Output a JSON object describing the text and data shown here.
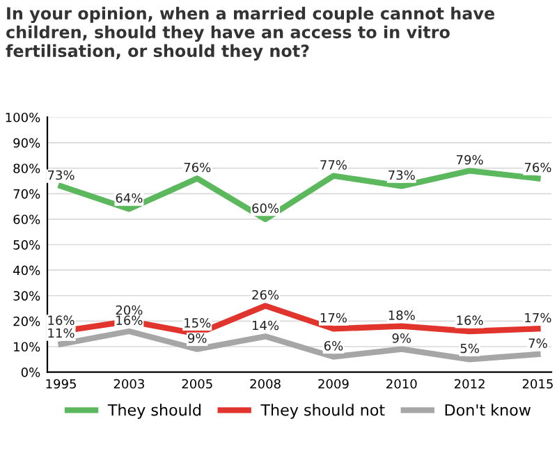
{
  "chart_data": {
    "type": "line",
    "title": "In your opinion, when a married couple cannot have children, should they have an access to in vitro fertilisation, or should they not?",
    "categories": [
      "1995",
      "2003",
      "2005",
      "2008",
      "2009",
      "2010",
      "2012",
      "2015"
    ],
    "series": [
      {
        "name": "They should",
        "color": "#5cb85c",
        "values": [
          73,
          64,
          76,
          60,
          77,
          73,
          79,
          76
        ],
        "value_labels": [
          "73%",
          "64%",
          "76%",
          "60%",
          "77%",
          "73%",
          "79%",
          "76%"
        ]
      },
      {
        "name": "They should not",
        "color": "#e0342c",
        "values": [
          16,
          20,
          15,
          26,
          17,
          18,
          16,
          17
        ],
        "value_labels": [
          "16%",
          "20%",
          "15%",
          "26%",
          "17%",
          "18%",
          "16%",
          "17%"
        ]
      },
      {
        "name": "Don't know",
        "color": "#a6a6a6",
        "values": [
          11,
          16,
          9,
          14,
          6,
          9,
          5,
          7
        ],
        "value_labels": [
          "11%",
          "16%",
          "9%",
          "14%",
          "6%",
          "9%",
          "5%",
          "7%"
        ]
      }
    ],
    "ylim": [
      0,
      100
    ],
    "yticks": [
      {
        "value": 0,
        "label": "0%"
      },
      {
        "value": 10,
        "label": "10%"
      },
      {
        "value": 20,
        "label": "20%"
      },
      {
        "value": 30,
        "label": "30%"
      },
      {
        "value": 40,
        "label": "40%"
      },
      {
        "value": 50,
        "label": "50%"
      },
      {
        "value": 60,
        "label": "60%"
      },
      {
        "value": 70,
        "label": "70%"
      },
      {
        "value": 80,
        "label": "80%"
      },
      {
        "value": 90,
        "label": "90%"
      },
      {
        "value": 100,
        "label": "100%"
      }
    ],
    "grid": "y",
    "legend": "bottom",
    "marker": "none",
    "line_style": "solid"
  }
}
